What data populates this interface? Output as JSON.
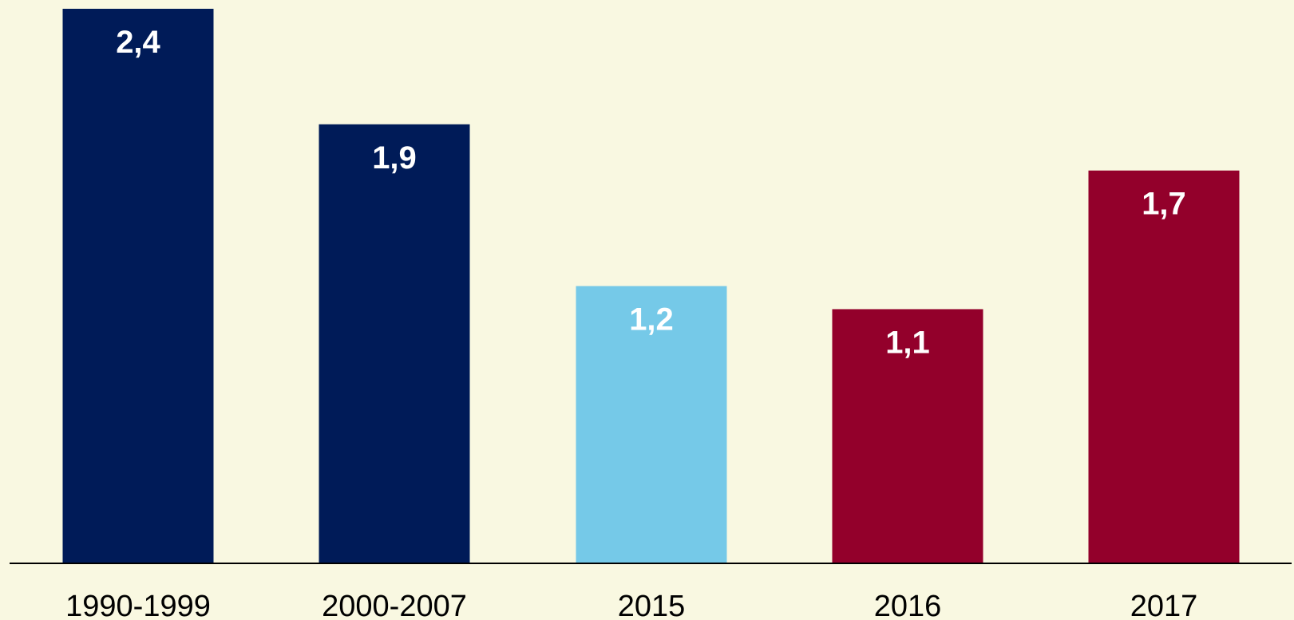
{
  "chart_data": {
    "type": "bar",
    "categories": [
      "1990-1999",
      "2000-2007",
      "2015",
      "2016",
      "2017"
    ],
    "values": [
      2.4,
      1.9,
      1.2,
      1.1,
      1.7
    ],
    "value_labels": [
      "2,4",
      "1,9",
      "1,2",
      "1,1",
      "1,7"
    ],
    "colors": [
      "#001b58",
      "#001b58",
      "#75c9e8",
      "#93002b",
      "#93002b"
    ],
    "ylim": [
      0,
      2.4
    ]
  }
}
